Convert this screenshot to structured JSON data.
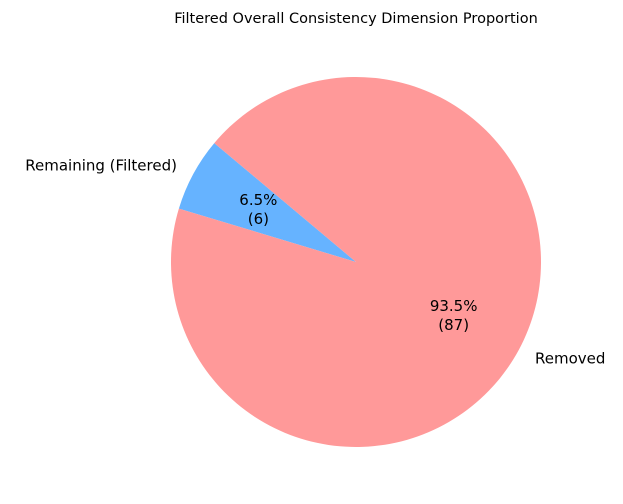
{
  "chart_data": {
    "type": "pie",
    "title": "Filtered Overall Consistency Dimension Proportion",
    "slices": [
      {
        "label": "Remaining (Filtered)",
        "value": 6,
        "percent_label": "6.5%",
        "count_label": "(6)",
        "color": "#66b3ff"
      },
      {
        "label": "Removed",
        "value": 87,
        "percent_label": "93.5%",
        "count_label": "(87)",
        "color": "#ff9999"
      }
    ],
    "start_angle_deg": 140,
    "direction": "counterclockwise",
    "legend": "none",
    "grid": false
  }
}
